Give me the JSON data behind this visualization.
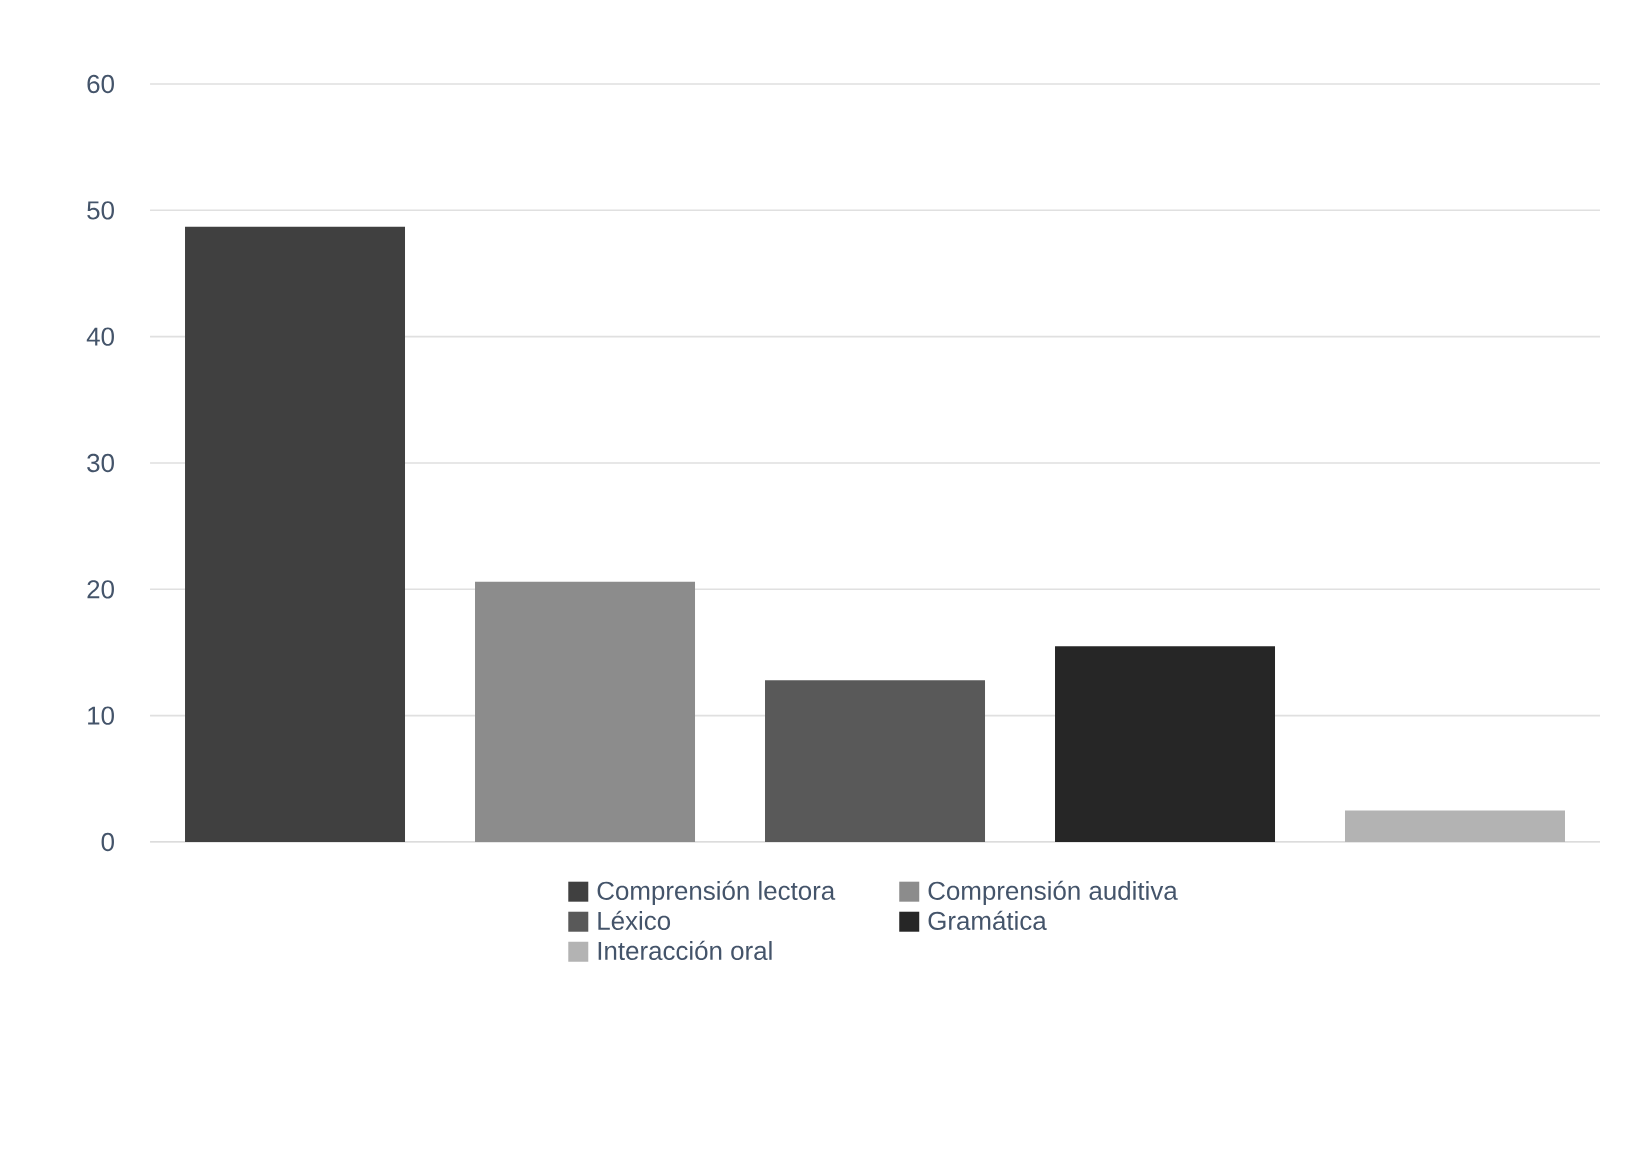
{
  "chart_data": {
    "type": "bar",
    "categories": [
      null,
      null,
      null,
      null,
      null
    ],
    "series": [
      {
        "name": "Comprensión lectora",
        "color": "#404040",
        "values": [
          48.7,
          null,
          null,
          null,
          null
        ]
      },
      {
        "name": "Comprensión auditiva",
        "color": "#8c8c8c",
        "values": [
          null,
          20.6,
          null,
          null,
          null
        ]
      },
      {
        "name": "Léxico",
        "color": "#595959",
        "values": [
          null,
          null,
          12.8,
          null,
          null
        ]
      },
      {
        "name": "Gramática",
        "color": "#262626",
        "values": [
          null,
          null,
          null,
          15.5,
          null
        ]
      },
      {
        "name": "Interacción oral",
        "color": "#b3b3b3",
        "values": [
          null,
          null,
          null,
          null,
          2.5
        ]
      }
    ],
    "ylim": [
      0,
      60
    ],
    "yticks": [
      0,
      10,
      20,
      30,
      40,
      50,
      60
    ],
    "grid": "y",
    "legend": "bottom"
  }
}
